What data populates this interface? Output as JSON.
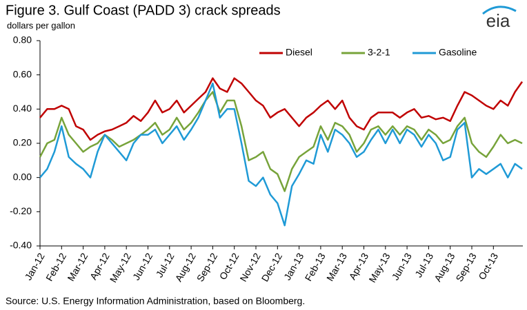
{
  "chart_data": {
    "type": "line",
    "title": "Figure 3. Gulf Coast (PADD 3) crack spreads",
    "subtitle": "dollars per gallon",
    "logo": "eia",
    "source": "Source: U.S. Energy Information Administration, based on Bloomberg.",
    "categories": [
      "Jan-12",
      null,
      null,
      "Feb-12",
      null,
      null,
      "Mar-12",
      null,
      null,
      "Apr-12",
      null,
      null,
      "May-12",
      null,
      null,
      "Jun-12",
      null,
      null,
      "Jul-12",
      null,
      null,
      "Aug-12",
      null,
      null,
      "Sep-12",
      null,
      null,
      "Oct-12",
      null,
      null,
      "Nov-12",
      null,
      null,
      "Dec-12",
      null,
      null,
      "Jan-13",
      null,
      null,
      "Feb-13",
      null,
      null,
      "Mar-13",
      null,
      null,
      "Apr-13",
      null,
      null,
      "May-13",
      null,
      null,
      "Jun-13",
      null,
      null,
      "Jul-13",
      null,
      null,
      "Aug-13",
      null,
      null,
      "Sep-13",
      null,
      null,
      "Oct-13",
      null,
      null,
      null,
      null
    ],
    "series": [
      {
        "name": "Diesel",
        "color": "#c00000",
        "values": [
          0.35,
          0.4,
          0.4,
          0.42,
          0.4,
          0.3,
          0.28,
          0.22,
          0.25,
          0.27,
          0.28,
          0.3,
          0.32,
          0.36,
          0.33,
          0.38,
          0.45,
          0.38,
          0.4,
          0.45,
          0.38,
          0.42,
          0.46,
          0.5,
          0.58,
          0.52,
          0.5,
          0.58,
          0.55,
          0.5,
          0.45,
          0.42,
          0.35,
          0.38,
          0.4,
          0.35,
          0.3,
          0.35,
          0.38,
          0.42,
          0.45,
          0.4,
          0.45,
          0.35,
          0.3,
          0.28,
          0.35,
          0.38,
          0.38,
          0.38,
          0.35,
          0.38,
          0.4,
          0.35,
          0.36,
          0.34,
          0.35,
          0.33,
          0.42,
          0.5,
          0.48,
          0.45,
          0.42,
          0.4,
          0.45,
          0.42,
          0.5,
          0.56
        ]
      },
      {
        "name": "3-2-1",
        "color": "#77a33a",
        "values": [
          0.12,
          0.2,
          0.22,
          0.35,
          0.25,
          0.2,
          0.15,
          0.18,
          0.2,
          0.25,
          0.22,
          0.18,
          0.2,
          0.22,
          0.25,
          0.28,
          0.32,
          0.25,
          0.28,
          0.35,
          0.28,
          0.32,
          0.38,
          0.45,
          0.5,
          0.38,
          0.45,
          0.45,
          0.3,
          0.1,
          0.12,
          0.15,
          0.05,
          0.02,
          -0.08,
          0.05,
          0.12,
          0.15,
          0.18,
          0.3,
          0.22,
          0.32,
          0.3,
          0.25,
          0.15,
          0.2,
          0.28,
          0.3,
          0.25,
          0.3,
          0.25,
          0.3,
          0.28,
          0.22,
          0.28,
          0.25,
          0.2,
          0.22,
          0.3,
          0.35,
          0.2,
          0.15,
          0.12,
          0.18,
          0.25,
          0.2,
          0.22,
          0.2
        ]
      },
      {
        "name": "Gasoline",
        "color": "#1f9ad6",
        "values": [
          0.0,
          0.05,
          0.15,
          0.3,
          0.12,
          0.08,
          0.05,
          0.0,
          0.15,
          0.25,
          0.2,
          0.15,
          0.1,
          0.2,
          0.25,
          0.25,
          0.28,
          0.2,
          0.25,
          0.3,
          0.22,
          0.28,
          0.35,
          0.45,
          0.55,
          0.35,
          0.4,
          0.4,
          0.2,
          -0.02,
          -0.05,
          0.0,
          -0.1,
          -0.15,
          -0.28,
          -0.05,
          0.02,
          0.1,
          0.08,
          0.25,
          0.15,
          0.28,
          0.25,
          0.2,
          0.12,
          0.15,
          0.22,
          0.28,
          0.2,
          0.28,
          0.2,
          0.28,
          0.25,
          0.18,
          0.25,
          0.2,
          0.1,
          0.12,
          0.28,
          0.32,
          0.0,
          0.05,
          0.02,
          0.05,
          0.08,
          0.0,
          0.08,
          0.05
        ]
      }
    ],
    "ylim": [
      -0.4,
      0.8
    ],
    "yticks": [
      {
        "value": 0.8,
        "label": "0.80"
      },
      {
        "value": 0.6,
        "label": "0.60"
      },
      {
        "value": 0.4,
        "label": "0.40"
      },
      {
        "value": 0.2,
        "label": "0.20"
      },
      {
        "value": 0,
        "label": "0.00"
      },
      {
        "value": -0.2,
        "label": "-0.20"
      },
      {
        "value": -0.4,
        "label": "-0.40"
      }
    ],
    "legend": "top-right",
    "grid": false
  }
}
